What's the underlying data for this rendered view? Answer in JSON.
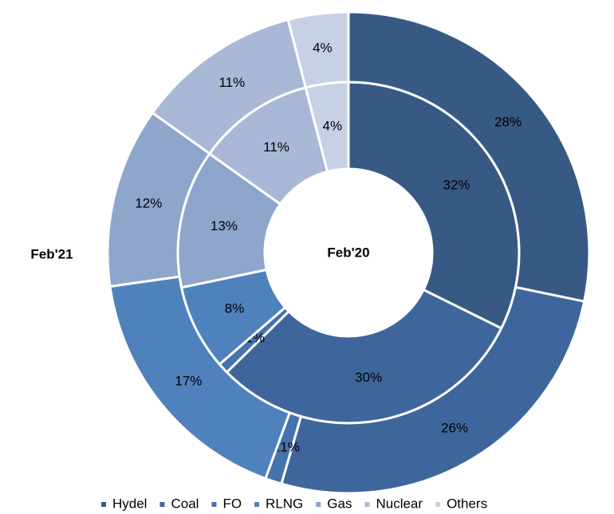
{
  "chart_data": {
    "type": "donut",
    "categories": [
      "Hydel",
      "Coal",
      "FO",
      "RLNG",
      "Gas",
      "Nuclear",
      "Others"
    ],
    "colors": [
      "#375a85",
      "#3f669c",
      "#4672ad",
      "#4f81bd",
      "#8ea5cc",
      "#a9b8d6",
      "#c6d1e5"
    ],
    "series": [
      {
        "name": "Feb'20",
        "values": [
          32,
          30,
          1,
          8,
          13,
          11,
          4
        ],
        "value_labels": [
          "32%",
          "30%",
          "1%",
          "8%",
          "13%",
          "11%",
          "4%"
        ]
      },
      {
        "name": "Feb'21",
        "values": [
          28,
          26,
          1.1,
          17,
          12,
          11,
          4
        ],
        "value_labels": [
          "28%",
          "26%",
          "1.1%",
          "17%",
          "12%",
          "11%",
          "4%"
        ]
      }
    ],
    "legend": "bottom"
  }
}
